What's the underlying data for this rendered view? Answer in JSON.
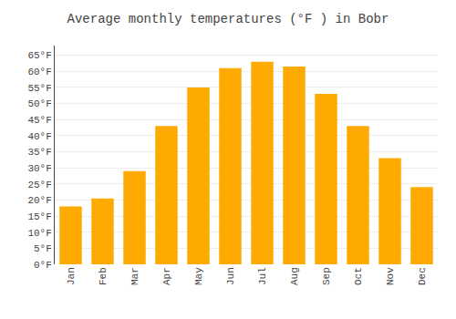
{
  "chart_data": {
    "type": "bar",
    "title": "Average monthly temperatures (°F ) in Bobr",
    "categories": [
      "Jan",
      "Feb",
      "Mar",
      "Apr",
      "May",
      "Jun",
      "Jul",
      "Aug",
      "Sep",
      "Oct",
      "Nov",
      "Dec"
    ],
    "values": [
      18,
      20.5,
      29,
      43,
      55,
      61,
      63,
      61.5,
      53,
      43,
      33,
      24
    ],
    "color": "#FFAA00",
    "ylim": [
      0,
      68
    ],
    "yticks": [
      {
        "value": 0,
        "label": "0°F"
      },
      {
        "value": 5,
        "label": "5°F"
      },
      {
        "value": 10,
        "label": "10°F"
      },
      {
        "value": 15,
        "label": "15°F"
      },
      {
        "value": 20,
        "label": "20°F"
      },
      {
        "value": 25,
        "label": "25°F"
      },
      {
        "value": 30,
        "label": "30°F"
      },
      {
        "value": 35,
        "label": "35°F"
      },
      {
        "value": 40,
        "label": "40°F"
      },
      {
        "value": 45,
        "label": "45°F"
      },
      {
        "value": 50,
        "label": "50°F"
      },
      {
        "value": 55,
        "label": "55°F"
      },
      {
        "value": 60,
        "label": "60°F"
      },
      {
        "value": 65,
        "label": "65°F"
      }
    ],
    "grid": true
  }
}
